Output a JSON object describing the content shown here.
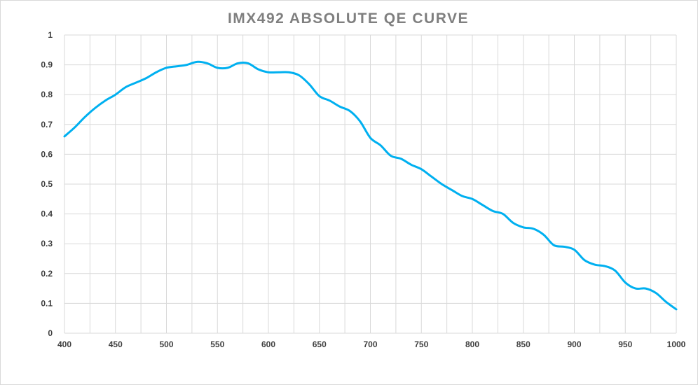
{
  "chart_data": {
    "type": "line",
    "title": "IMX492 ABSOLUTE QE CURVE",
    "xlabel": "",
    "ylabel": "",
    "xlim": [
      400,
      1000
    ],
    "ylim": [
      0,
      1
    ],
    "grid": true,
    "x_grid_step": 25,
    "y_grid_step": 0.1,
    "x_ticks": [
      "400",
      "450",
      "500",
      "550",
      "600",
      "650",
      "700",
      "750",
      "800",
      "850",
      "900",
      "950",
      "1000"
    ],
    "y_ticks": [
      "0",
      "0.1",
      "0.2",
      "0.3",
      "0.4",
      "0.5",
      "0.6",
      "0.7",
      "0.8",
      "0.9",
      "1"
    ],
    "series": [
      {
        "name": "QE",
        "color": "#00b0f0",
        "x": [
          400,
          410,
          420,
          430,
          440,
          450,
          460,
          470,
          480,
          490,
          500,
          510,
          520,
          530,
          540,
          550,
          560,
          570,
          580,
          590,
          600,
          610,
          620,
          630,
          640,
          650,
          660,
          670,
          680,
          690,
          700,
          710,
          720,
          730,
          740,
          750,
          760,
          770,
          780,
          790,
          800,
          810,
          820,
          830,
          840,
          850,
          860,
          870,
          880,
          890,
          900,
          910,
          920,
          930,
          940,
          950,
          960,
          970,
          980,
          990,
          1000
        ],
        "values": [
          0.66,
          0.69,
          0.725,
          0.755,
          0.78,
          0.8,
          0.825,
          0.84,
          0.855,
          0.875,
          0.89,
          0.895,
          0.9,
          0.91,
          0.905,
          0.89,
          0.89,
          0.905,
          0.905,
          0.885,
          0.875,
          0.875,
          0.875,
          0.865,
          0.835,
          0.795,
          0.78,
          0.76,
          0.745,
          0.71,
          0.655,
          0.63,
          0.595,
          0.585,
          0.565,
          0.55,
          0.525,
          0.5,
          0.48,
          0.46,
          0.45,
          0.43,
          0.41,
          0.4,
          0.37,
          0.355,
          0.35,
          0.33,
          0.295,
          0.29,
          0.28,
          0.245,
          0.23,
          0.225,
          0.21,
          0.17,
          0.15,
          0.15,
          0.135,
          0.105,
          0.08
        ]
      }
    ]
  }
}
